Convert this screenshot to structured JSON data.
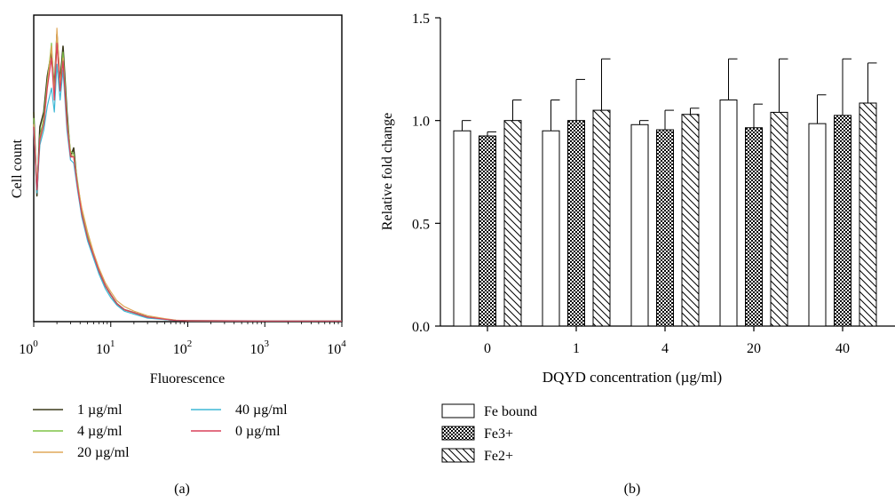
{
  "panel_a": {
    "caption": "(a)",
    "ylabel": "Cell count",
    "xlabel": "Fluorescence",
    "tick_labels": [
      {
        "base": "10",
        "exp": "0"
      },
      {
        "base": "10",
        "exp": "1"
      },
      {
        "base": "10",
        "exp": "2"
      },
      {
        "base": "10",
        "exp": "3"
      },
      {
        "base": "10",
        "exp": "4"
      }
    ],
    "legend": [
      {
        "label": "1 µg/ml",
        "color": "#3b3a1c"
      },
      {
        "label": "4 µg/ml",
        "color": "#7fc446"
      },
      {
        "label": "20 µg/ml",
        "color": "#e0a85a"
      },
      {
        "label": "40 µg/ml",
        "color": "#3fb8d6"
      },
      {
        "label": "0 µg/ml",
        "color": "#d9405a"
      }
    ]
  },
  "panel_b": {
    "caption": "(b)",
    "ylabel": "Relative fold change",
    "xlabel": "DQYD concentration (µg/ml)",
    "yticks": [
      "0.0",
      "0.5",
      "1.0",
      "1.5"
    ],
    "legend": [
      {
        "label": "Fe bound",
        "pattern": "open"
      },
      {
        "label": "Fe3+",
        "pattern": "checker"
      },
      {
        "label": "Fe2+",
        "pattern": "hatch"
      }
    ]
  },
  "chart_data": [
    {
      "type": "line",
      "title": "",
      "xlabel": "Fluorescence",
      "ylabel": "Cell count",
      "xscale": "log",
      "xlim": [
        1,
        10000
      ],
      "grid": false,
      "legend_position": "bottom",
      "x": [
        1,
        1.1,
        1.2,
        1.35,
        1.5,
        1.7,
        1.85,
        2,
        2.2,
        2.4,
        2.7,
        3,
        3.3,
        3.7,
        4.2,
        5,
        6,
        7,
        8.5,
        10,
        12,
        15,
        20,
        30,
        50,
        70,
        100,
        1000,
        10000
      ],
      "series": [
        {
          "name": "1 µg/ml",
          "color": "#3b3a1c",
          "values": [
            0.7,
            0.42,
            0.65,
            0.7,
            0.82,
            0.9,
            0.78,
            0.96,
            0.8,
            0.92,
            0.7,
            0.55,
            0.58,
            0.45,
            0.36,
            0.28,
            0.22,
            0.17,
            0.12,
            0.09,
            0.06,
            0.04,
            0.03,
            0.015,
            0.008,
            0.004,
            0.003,
            0.002,
            0.002
          ]
        },
        {
          "name": "4 µg/ml",
          "color": "#7fc446",
          "values": [
            0.68,
            0.45,
            0.62,
            0.68,
            0.8,
            0.93,
            0.76,
            0.94,
            0.78,
            0.9,
            0.68,
            0.57,
            0.56,
            0.47,
            0.37,
            0.29,
            0.22,
            0.17,
            0.12,
            0.09,
            0.06,
            0.04,
            0.03,
            0.015,
            0.008,
            0.004,
            0.003,
            0.002,
            0.002
          ]
        },
        {
          "name": "20 µg/ml",
          "color": "#e0a85a",
          "values": [
            0.66,
            0.44,
            0.6,
            0.66,
            0.79,
            0.92,
            0.75,
            0.98,
            0.79,
            0.88,
            0.66,
            0.56,
            0.55,
            0.46,
            0.38,
            0.3,
            0.23,
            0.18,
            0.13,
            0.1,
            0.07,
            0.05,
            0.035,
            0.02,
            0.01,
            0.005,
            0.003,
            0.002,
            0.002
          ]
        },
        {
          "name": "40 µg/ml",
          "color": "#3fb8d6",
          "values": [
            0.64,
            0.43,
            0.59,
            0.64,
            0.72,
            0.78,
            0.7,
            0.86,
            0.74,
            0.84,
            0.64,
            0.54,
            0.53,
            0.44,
            0.35,
            0.27,
            0.21,
            0.16,
            0.11,
            0.08,
            0.055,
            0.035,
            0.025,
            0.012,
            0.007,
            0.004,
            0.003,
            0.002,
            0.002
          ]
        },
        {
          "name": "0 µg/ml",
          "color": "#d9405a",
          "values": [
            0.65,
            0.44,
            0.61,
            0.66,
            0.78,
            0.88,
            0.74,
            0.93,
            0.77,
            0.87,
            0.66,
            0.55,
            0.55,
            0.45,
            0.36,
            0.28,
            0.22,
            0.17,
            0.12,
            0.09,
            0.06,
            0.04,
            0.03,
            0.015,
            0.008,
            0.004,
            0.003,
            0.002,
            0.002
          ]
        }
      ]
    },
    {
      "type": "bar",
      "title": "",
      "xlabel": "DQYD concentration (µg/ml)",
      "ylabel": "Relative fold change",
      "ylim": [
        0,
        1.5
      ],
      "grid": false,
      "legend_position": "bottom-left",
      "categories": [
        "0",
        "1",
        "4",
        "20",
        "40"
      ],
      "series": [
        {
          "name": "Fe bound",
          "values": [
            0.95,
            0.95,
            0.98,
            1.1,
            0.985
          ],
          "errors": [
            0.05,
            0.15,
            0.02,
            0.2,
            0.14
          ]
        },
        {
          "name": "Fe3+",
          "values": [
            0.925,
            1.0,
            0.955,
            0.965,
            1.025
          ],
          "errors": [
            0.02,
            0.2,
            0.095,
            0.115,
            0.275
          ]
        },
        {
          "name": "Fe2+",
          "values": [
            1.0,
            1.05,
            1.03,
            1.04,
            1.085
          ],
          "errors": [
            0.1,
            0.25,
            0.03,
            0.26,
            0.195
          ]
        }
      ]
    }
  ]
}
